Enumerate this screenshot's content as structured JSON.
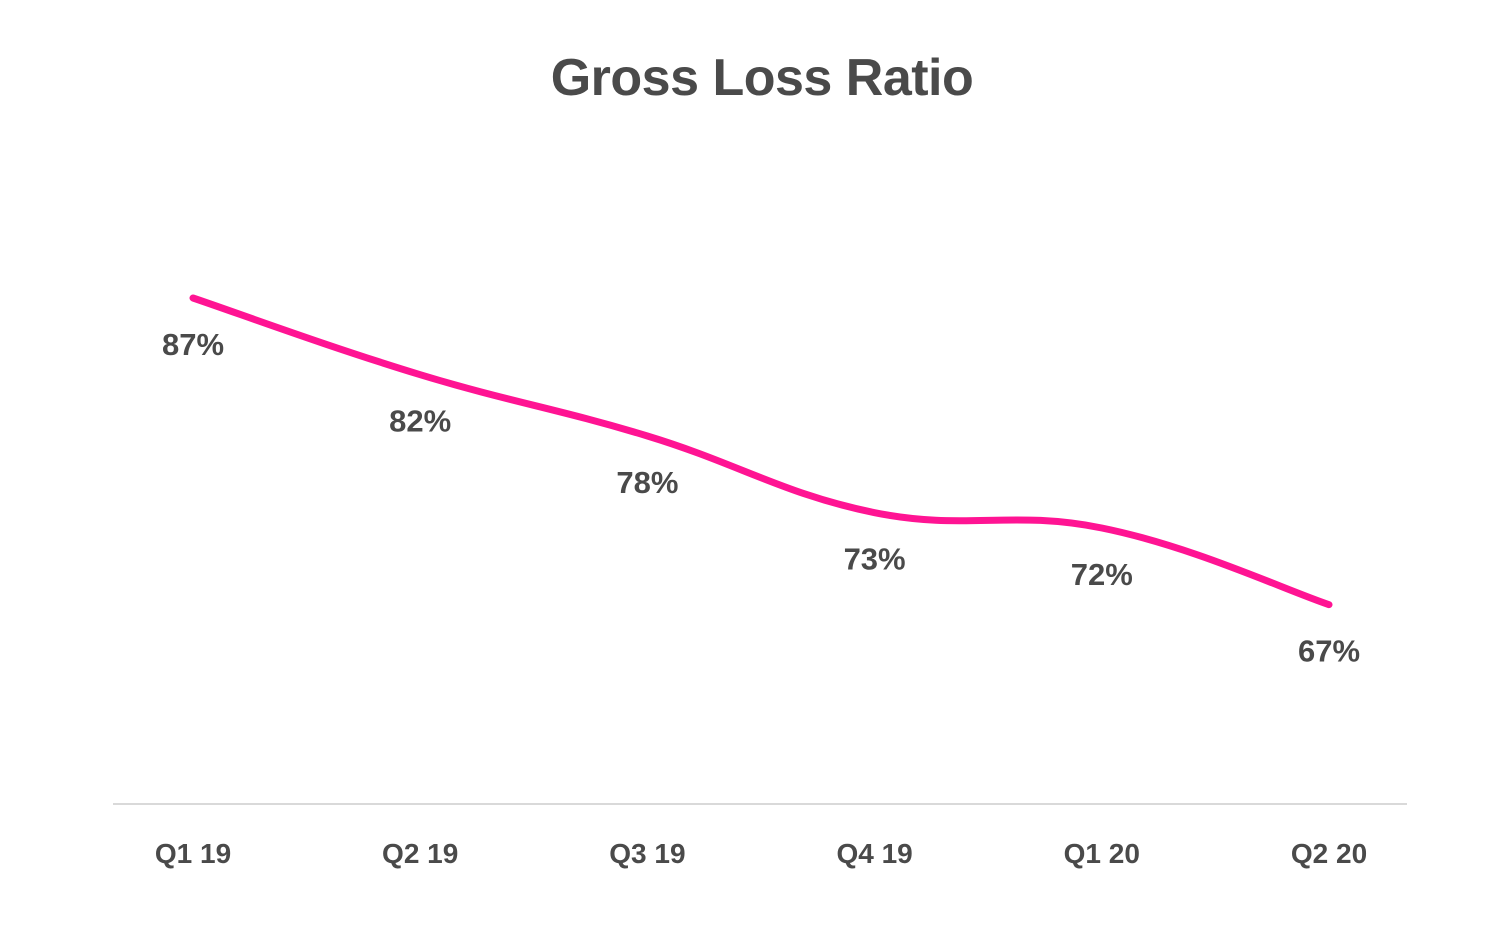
{
  "chart_data": {
    "type": "line",
    "title": "Gross Loss Ratio",
    "categories": [
      "Q1 19",
      "Q2 19",
      "Q3 19",
      "Q4 19",
      "Q1 20",
      "Q2 20"
    ],
    "series": [
      {
        "values": [
          87,
          82,
          78,
          73,
          72,
          67
        ],
        "labels": [
          "87%",
          "82%",
          "78%",
          "73%",
          "72%",
          "67%"
        ]
      }
    ],
    "ylim": [
      54,
      96
    ],
    "grid": false,
    "legend": "none",
    "colors": {
      "line": "#ff1493",
      "axis": "#d9d9d9",
      "text": "#4a4a4a"
    }
  }
}
